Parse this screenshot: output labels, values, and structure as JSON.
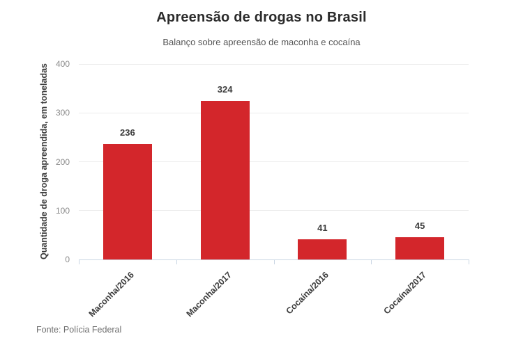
{
  "chart_data": {
    "type": "bar",
    "title": "Apreensão de drogas no Brasil",
    "subtitle": "Balanço sobre apreensão de maconha e cocaína",
    "categories": [
      "Maconha/2016",
      "Maconha/2017",
      "Cocaína/2016",
      "Cocaína/2017"
    ],
    "values": [
      236,
      324,
      41,
      45
    ],
    "xlabel": "",
    "ylabel": "Quantidade de droga apreendida, em toneladas",
    "ylim": [
      0,
      400
    ],
    "yticks": [
      0,
      100,
      200,
      300,
      400
    ],
    "grid": true,
    "legend": false,
    "bar_color": "#d3262b"
  },
  "source": "Fonte: Polícia Federal",
  "colors": {
    "title": "#2b2b2b",
    "subtitle": "#555555",
    "ylabel": "#3c3c3c",
    "axis_line": "#c9d5e3",
    "gridline": "#ececec",
    "tick_label": "#8a8a8a",
    "value_label": "#3c3c3c",
    "category_label": "#3c3c3c",
    "source_text": "#6f6f6f"
  }
}
